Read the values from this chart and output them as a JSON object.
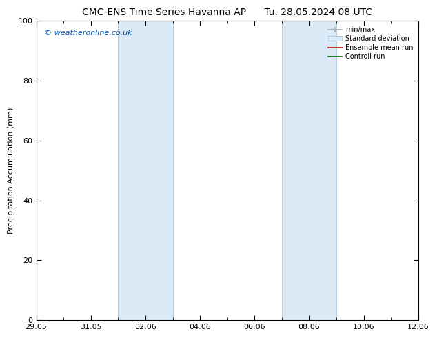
{
  "title_left": "CMC-ENS Time Series Havanna AP",
  "title_right": "Tu. 28.05.2024 08 UTC",
  "ylabel": "Precipitation Accumulation (mm)",
  "watermark": "© weatheronline.co.uk",
  "watermark_color": "#0055bb",
  "ylim": [
    0,
    100
  ],
  "yticks": [
    0,
    20,
    40,
    60,
    80,
    100
  ],
  "shade_color": "#daeaf7",
  "shade_edge_color": "#aaccdd",
  "xtick_labels": [
    "29.05",
    "31.05",
    "02.06",
    "04.06",
    "06.06",
    "08.06",
    "10.06",
    "12.06"
  ],
  "xtick_positions": [
    0,
    2,
    4,
    6,
    8,
    10,
    12,
    14
  ],
  "xlim": [
    0,
    14
  ],
  "shaded_bands": [
    {
      "x_start": 3.0,
      "x_end": 5.0
    },
    {
      "x_start": 9.0,
      "x_end": 11.0
    }
  ],
  "legend_labels": [
    "min/max",
    "Standard deviation",
    "Ensemble mean run",
    "Controll run"
  ],
  "legend_colors_line": [
    "#aaaaaa",
    "#ccddee",
    "#cc0000",
    "#006600"
  ],
  "background_color": "#ffffff",
  "title_fontsize": 10,
  "label_fontsize": 8,
  "tick_fontsize": 8,
  "watermark_fontsize": 8
}
